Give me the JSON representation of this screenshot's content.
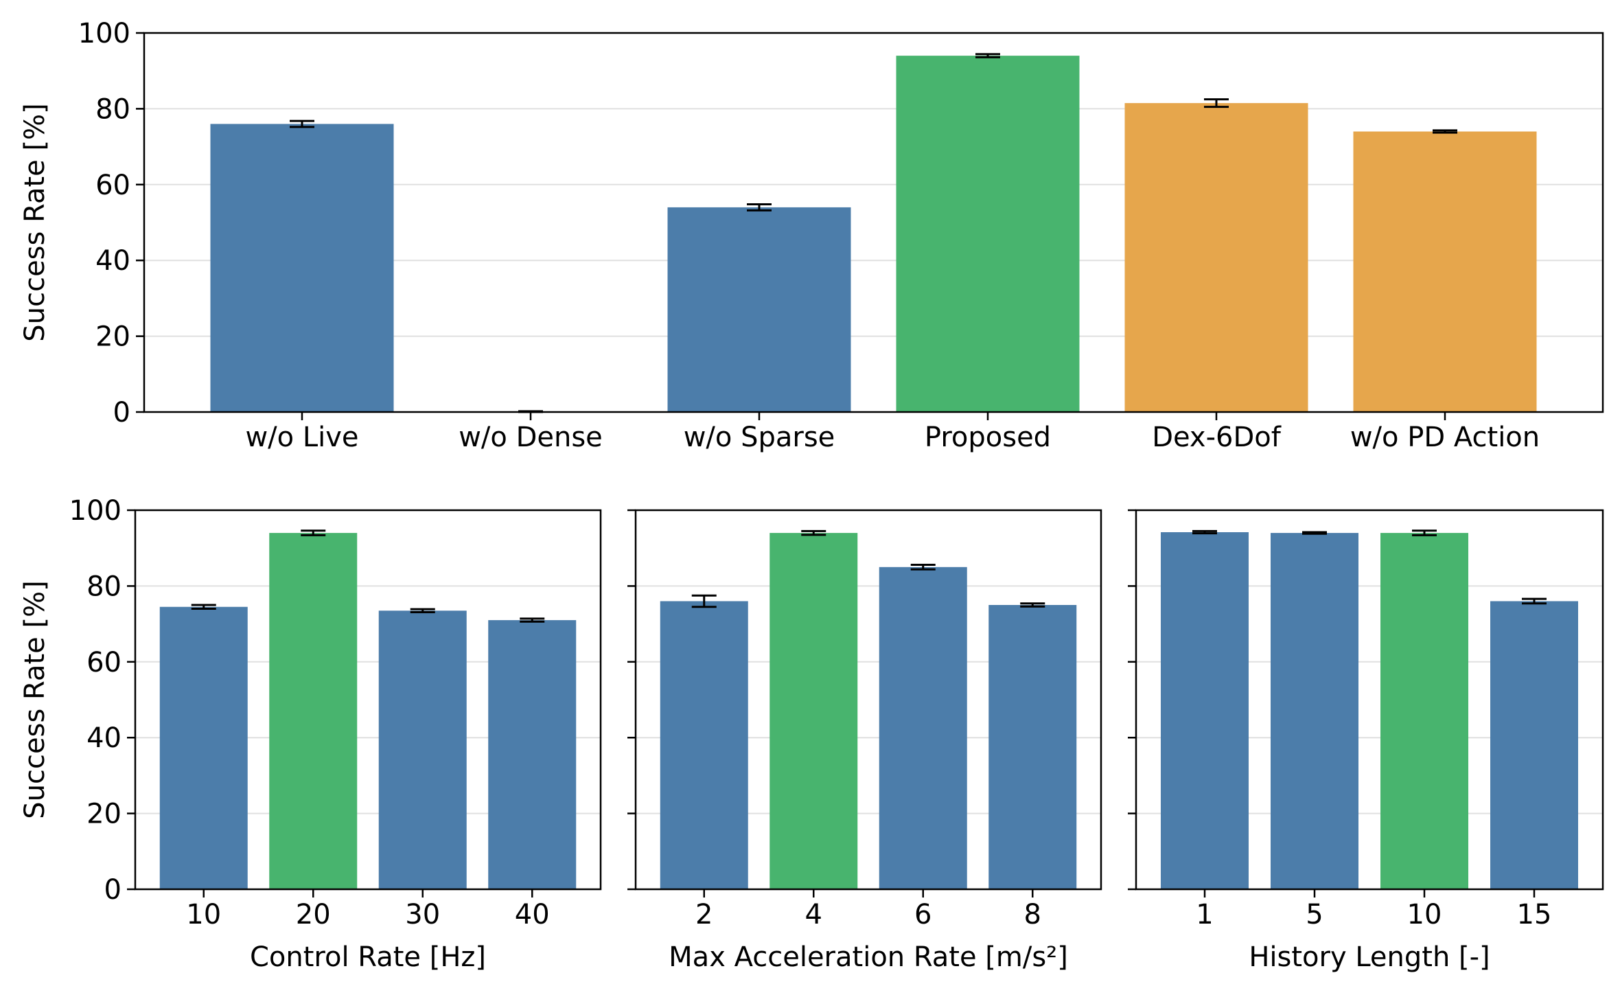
{
  "colors": {
    "baseline": "#4c7daa",
    "proposed": "#48b46e",
    "variant": "#e6a64c",
    "error_bar": "#000000",
    "grid": "#e0e0e0",
    "axes": "#000000"
  },
  "chart_data": [
    {
      "type": "bar",
      "title": "",
      "xlabel": "",
      "ylabel": "Success Rate [%]",
      "ylim": [
        0,
        100
      ],
      "yticks": [
        0,
        20,
        40,
        60,
        80,
        100
      ],
      "grid": true,
      "legend": "none",
      "categories": [
        "w/o Live",
        "w/o Dense",
        "w/o Sparse",
        "Proposed",
        "Dex-6Dof",
        "w/o PD Action"
      ],
      "values": [
        76,
        0,
        54,
        94,
        81.5,
        74
      ],
      "errors": [
        0.8,
        0.2,
        0.8,
        0.4,
        1.0,
        0.3
      ],
      "bar_colors": [
        "#4c7daa",
        "#4c7daa",
        "#4c7daa",
        "#48b46e",
        "#e6a64c",
        "#e6a64c"
      ]
    },
    {
      "type": "bar",
      "title": "",
      "xlabel": "Control Rate [Hz]",
      "ylabel": "Success Rate [%]",
      "ylim": [
        0,
        100
      ],
      "yticks": [
        0,
        20,
        40,
        60,
        80,
        100
      ],
      "grid": true,
      "legend": "none",
      "categories": [
        "10",
        "20",
        "30",
        "40"
      ],
      "values": [
        74.5,
        94,
        73.5,
        71
      ],
      "errors": [
        0.5,
        0.6,
        0.4,
        0.4
      ],
      "bar_colors": [
        "#4c7daa",
        "#48b46e",
        "#4c7daa",
        "#4c7daa"
      ]
    },
    {
      "type": "bar",
      "title": "",
      "xlabel": "Max Acceleration Rate [m/s²]",
      "ylabel": "",
      "ylim": [
        0,
        100
      ],
      "yticks": [
        0,
        20,
        40,
        60,
        80,
        100
      ],
      "grid": true,
      "legend": "none",
      "categories": [
        "2",
        "4",
        "6",
        "8"
      ],
      "values": [
        76,
        94,
        85,
        75
      ],
      "errors": [
        1.5,
        0.5,
        0.6,
        0.4
      ],
      "bar_colors": [
        "#4c7daa",
        "#48b46e",
        "#4c7daa",
        "#4c7daa"
      ]
    },
    {
      "type": "bar",
      "title": "",
      "xlabel": "History Length [-]",
      "ylabel": "",
      "ylim": [
        0,
        100
      ],
      "yticks": [
        0,
        20,
        40,
        60,
        80,
        100
      ],
      "grid": true,
      "legend": "none",
      "categories": [
        "1",
        "5",
        "10",
        "15"
      ],
      "values": [
        94.2,
        94,
        94,
        76
      ],
      "errors": [
        0.3,
        0.2,
        0.6,
        0.6
      ],
      "bar_colors": [
        "#4c7daa",
        "#4c7daa",
        "#48b46e",
        "#4c7daa"
      ]
    }
  ]
}
